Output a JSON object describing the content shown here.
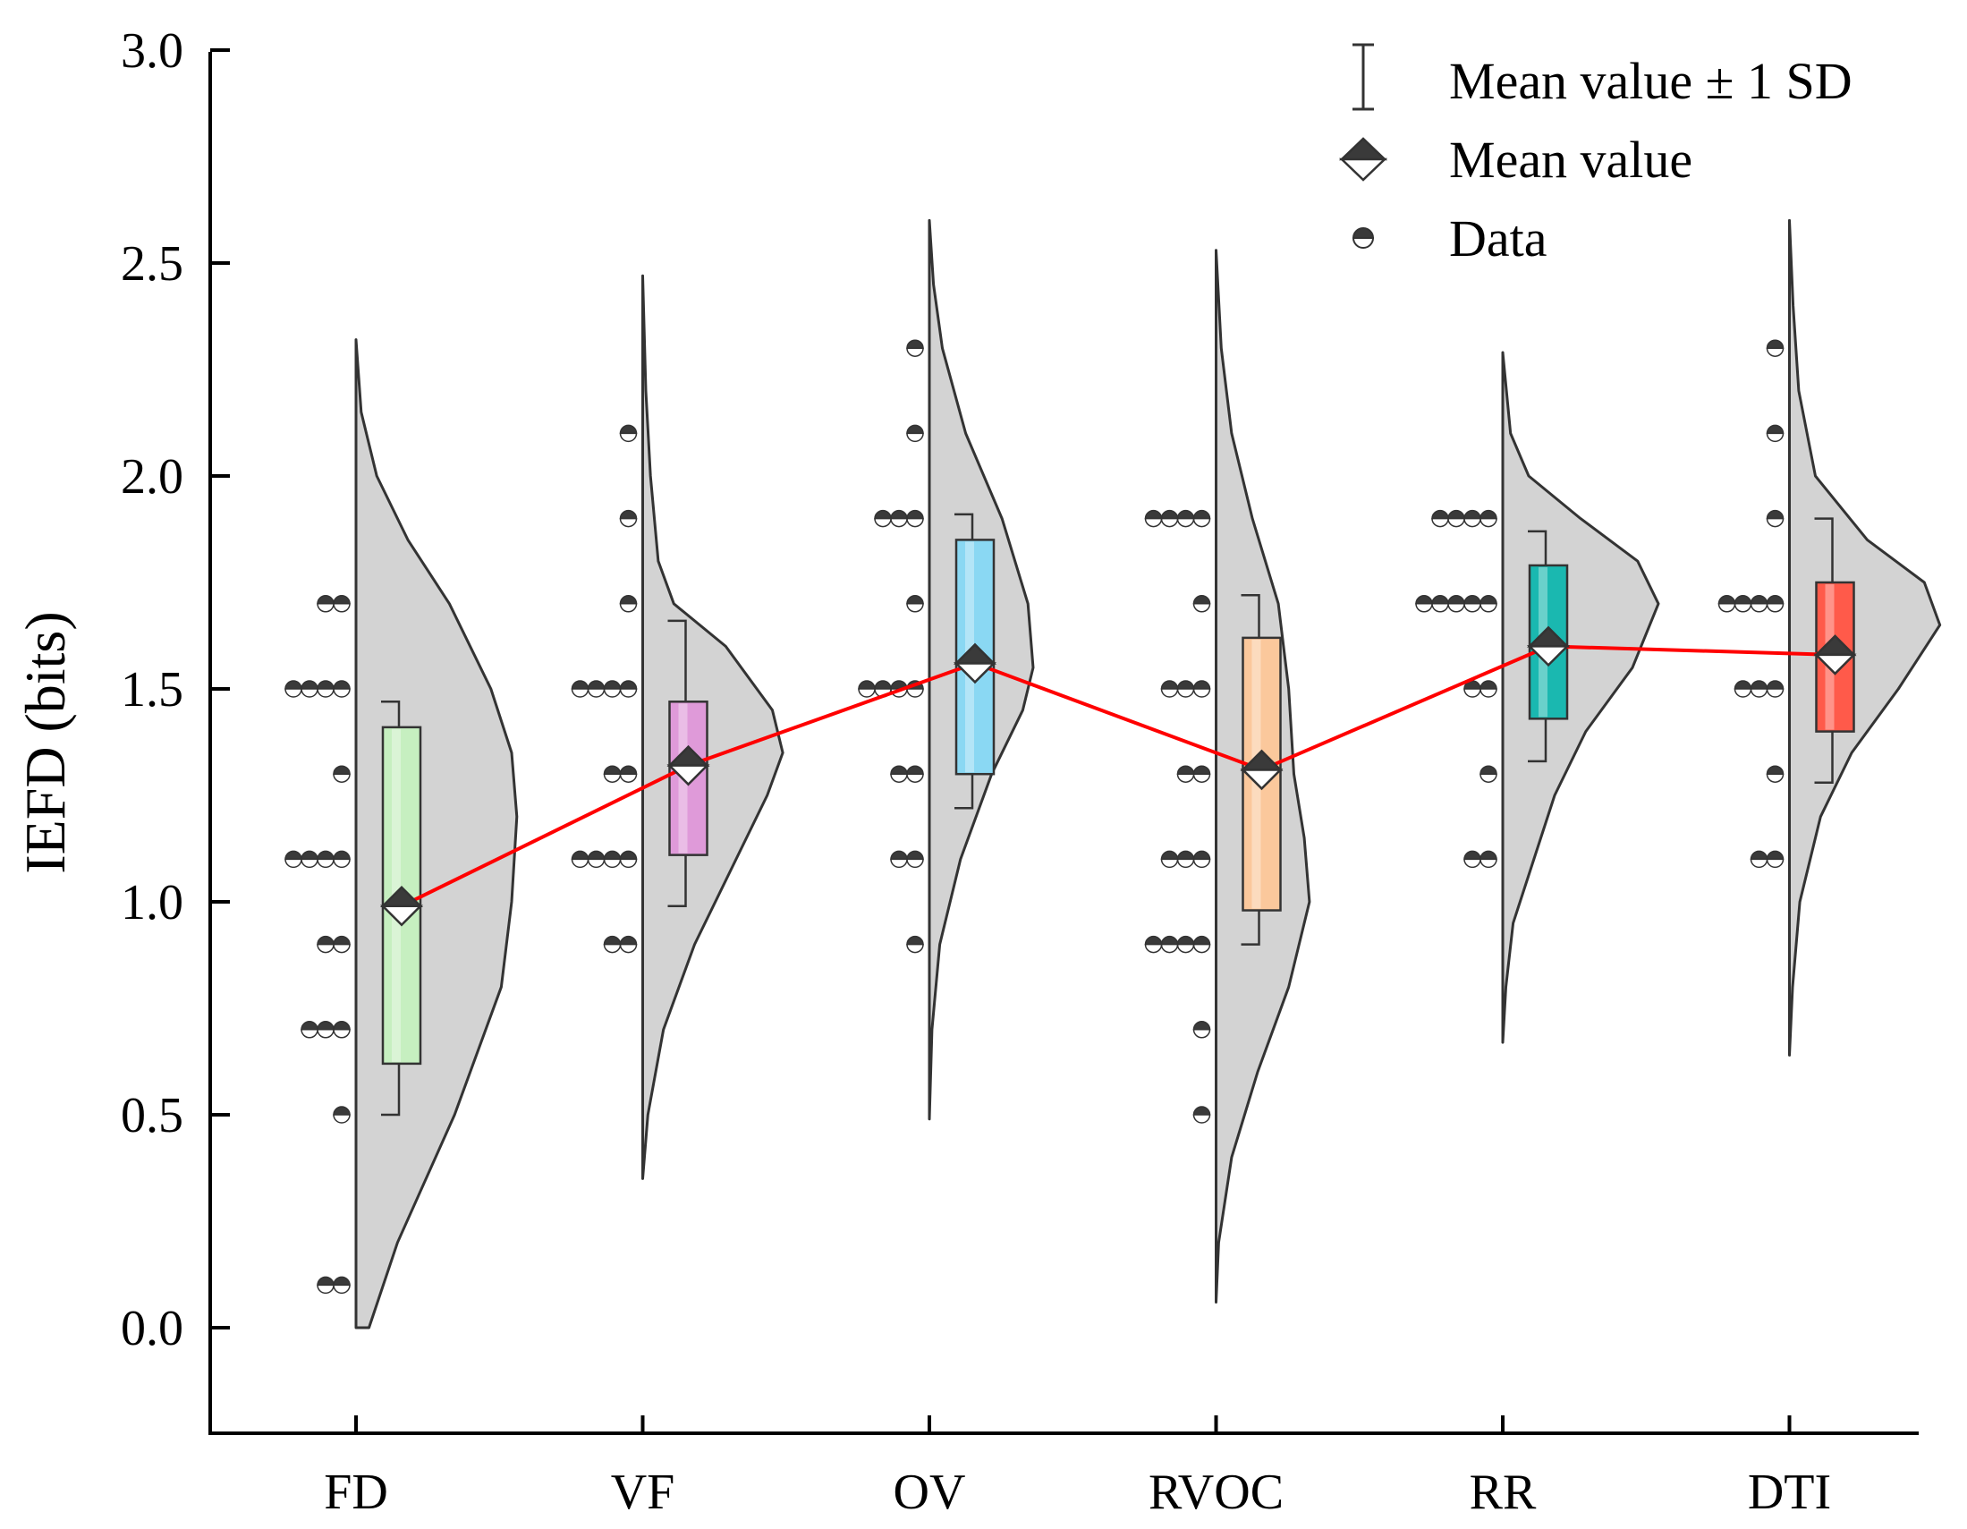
{
  "chart_data": {
    "type": "half-violin with box and jittered points",
    "ylabel": "IEFD (bits)",
    "ylim": [
      -0.2,
      3.0
    ],
    "yticks": [
      "0.0",
      "0.5",
      "1.0",
      "1.5",
      "2.0",
      "2.5",
      "3.0"
    ],
    "categories": [
      "FD",
      "VF",
      "OV",
      "RVOC",
      "RR",
      "DTI"
    ],
    "legend": {
      "position": "top-right",
      "items": [
        {
          "symbol": "errorbar",
          "label": "Mean value ± 1 SD"
        },
        {
          "symbol": "diamond",
          "label": "Mean value"
        },
        {
          "symbol": "dot",
          "label": "Data"
        }
      ]
    },
    "mean_line_color": "#ff0000",
    "groups": [
      {
        "name": "FD",
        "color": "#c6efc0",
        "mean": 0.99,
        "sd_low": 0.5,
        "sd_high": 1.47,
        "box_low": 0.62,
        "box_high": 1.41,
        "violin_range": [
          0.0,
          2.32
        ],
        "violin_profile": [
          [
            0.0,
            0.025
          ],
          [
            0.2,
            0.08
          ],
          [
            0.5,
            0.19
          ],
          [
            0.8,
            0.28
          ],
          [
            1.0,
            0.3
          ],
          [
            1.2,
            0.31
          ],
          [
            1.35,
            0.3
          ],
          [
            1.5,
            0.26
          ],
          [
            1.7,
            0.18
          ],
          [
            1.85,
            0.1
          ],
          [
            2.0,
            0.04
          ],
          [
            2.15,
            0.01
          ],
          [
            2.32,
            0.0
          ]
        ],
        "points": [
          {
            "y": 0.1,
            "n": 2
          },
          {
            "y": 0.5,
            "n": 1
          },
          {
            "y": 0.7,
            "n": 3
          },
          {
            "y": 0.9,
            "n": 2
          },
          {
            "y": 1.1,
            "n": 4
          },
          {
            "y": 1.3,
            "n": 1
          },
          {
            "y": 1.5,
            "n": 4
          },
          {
            "y": 1.7,
            "n": 2
          }
        ]
      },
      {
        "name": "VF",
        "color": "#df9ad9",
        "mean": 1.32,
        "sd_low": 0.99,
        "sd_high": 1.66,
        "box_low": 1.11,
        "box_high": 1.47,
        "violin_range": [
          0.35,
          2.47
        ],
        "violin_profile": [
          [
            0.35,
            0.0
          ],
          [
            0.5,
            0.01
          ],
          [
            0.7,
            0.04
          ],
          [
            0.9,
            0.1
          ],
          [
            1.1,
            0.18
          ],
          [
            1.25,
            0.24
          ],
          [
            1.35,
            0.27
          ],
          [
            1.45,
            0.25
          ],
          [
            1.6,
            0.16
          ],
          [
            1.7,
            0.06
          ],
          [
            1.8,
            0.03
          ],
          [
            2.0,
            0.015
          ],
          [
            2.2,
            0.006
          ],
          [
            2.47,
            0.0
          ]
        ],
        "points": [
          {
            "y": 0.9,
            "n": 2
          },
          {
            "y": 1.1,
            "n": 4
          },
          {
            "y": 1.3,
            "n": 2
          },
          {
            "y": 1.5,
            "n": 4
          },
          {
            "y": 1.7,
            "n": 1
          },
          {
            "y": 1.9,
            "n": 1
          },
          {
            "y": 2.1,
            "n": 1
          }
        ]
      },
      {
        "name": "OV",
        "color": "#8ad8f3",
        "mean": 1.56,
        "sd_low": 1.22,
        "sd_high": 1.91,
        "box_low": 1.3,
        "box_high": 1.85,
        "violin_range": [
          0.49,
          2.6
        ],
        "violin_profile": [
          [
            0.49,
            0.0
          ],
          [
            0.7,
            0.005
          ],
          [
            0.9,
            0.02
          ],
          [
            1.1,
            0.06
          ],
          [
            1.3,
            0.12
          ],
          [
            1.45,
            0.18
          ],
          [
            1.55,
            0.2
          ],
          [
            1.7,
            0.19
          ],
          [
            1.9,
            0.14
          ],
          [
            2.1,
            0.07
          ],
          [
            2.3,
            0.025
          ],
          [
            2.45,
            0.008
          ],
          [
            2.6,
            0.0
          ]
        ],
        "points": [
          {
            "y": 0.9,
            "n": 1
          },
          {
            "y": 1.1,
            "n": 2
          },
          {
            "y": 1.3,
            "n": 2
          },
          {
            "y": 1.5,
            "n": 4
          },
          {
            "y": 1.7,
            "n": 1
          },
          {
            "y": 1.9,
            "n": 3
          },
          {
            "y": 2.1,
            "n": 1
          },
          {
            "y": 2.3,
            "n": 1
          }
        ]
      },
      {
        "name": "RVOC",
        "color": "#fbc89c",
        "mean": 1.31,
        "sd_low": 0.9,
        "sd_high": 1.72,
        "box_low": 0.98,
        "box_high": 1.62,
        "violin_range": [
          0.06,
          2.53
        ],
        "violin_profile": [
          [
            0.06,
            0.0
          ],
          [
            0.2,
            0.005
          ],
          [
            0.4,
            0.03
          ],
          [
            0.6,
            0.08
          ],
          [
            0.8,
            0.14
          ],
          [
            1.0,
            0.18
          ],
          [
            1.15,
            0.17
          ],
          [
            1.3,
            0.15
          ],
          [
            1.5,
            0.14
          ],
          [
            1.7,
            0.12
          ],
          [
            1.9,
            0.07
          ],
          [
            2.1,
            0.03
          ],
          [
            2.3,
            0.01
          ],
          [
            2.53,
            0.0
          ]
        ],
        "points": [
          {
            "y": 0.5,
            "n": 1
          },
          {
            "y": 0.7,
            "n": 1
          },
          {
            "y": 0.9,
            "n": 4
          },
          {
            "y": 1.1,
            "n": 3
          },
          {
            "y": 1.3,
            "n": 2
          },
          {
            "y": 1.5,
            "n": 3
          },
          {
            "y": 1.7,
            "n": 1
          },
          {
            "y": 1.9,
            "n": 4
          }
        ]
      },
      {
        "name": "RR",
        "color": "#1ab8b0",
        "mean": 1.6,
        "sd_low": 1.33,
        "sd_high": 1.87,
        "box_low": 1.43,
        "box_high": 1.79,
        "violin_range": [
          0.67,
          2.29
        ],
        "violin_profile": [
          [
            0.67,
            0.0
          ],
          [
            0.8,
            0.006
          ],
          [
            0.95,
            0.02
          ],
          [
            1.1,
            0.06
          ],
          [
            1.25,
            0.1
          ],
          [
            1.4,
            0.16
          ],
          [
            1.55,
            0.25
          ],
          [
            1.7,
            0.3
          ],
          [
            1.8,
            0.26
          ],
          [
            1.9,
            0.15
          ],
          [
            2.0,
            0.05
          ],
          [
            2.1,
            0.015
          ],
          [
            2.29,
            0.0
          ]
        ],
        "points": [
          {
            "y": 1.1,
            "n": 2
          },
          {
            "y": 1.3,
            "n": 1
          },
          {
            "y": 1.5,
            "n": 2
          },
          {
            "y": 1.7,
            "n": 5
          },
          {
            "y": 1.9,
            "n": 4
          }
        ]
      },
      {
        "name": "DTI",
        "color": "#ff5a4a",
        "mean": 1.58,
        "sd_low": 1.28,
        "sd_high": 1.9,
        "box_low": 1.4,
        "box_high": 1.75,
        "violin_range": [
          0.64,
          2.6
        ],
        "violin_profile": [
          [
            0.64,
            0.0
          ],
          [
            0.8,
            0.006
          ],
          [
            1.0,
            0.02
          ],
          [
            1.2,
            0.06
          ],
          [
            1.35,
            0.12
          ],
          [
            1.5,
            0.21
          ],
          [
            1.65,
            0.29
          ],
          [
            1.75,
            0.26
          ],
          [
            1.85,
            0.15
          ],
          [
            2.0,
            0.05
          ],
          [
            2.2,
            0.018
          ],
          [
            2.4,
            0.007
          ],
          [
            2.6,
            0.0
          ]
        ],
        "points": [
          {
            "y": 1.1,
            "n": 2
          },
          {
            "y": 1.3,
            "n": 1
          },
          {
            "y": 1.5,
            "n": 3
          },
          {
            "y": 1.7,
            "n": 4
          },
          {
            "y": 1.9,
            "n": 1
          },
          {
            "y": 2.1,
            "n": 1
          },
          {
            "y": 2.3,
            "n": 1
          }
        ]
      }
    ]
  }
}
